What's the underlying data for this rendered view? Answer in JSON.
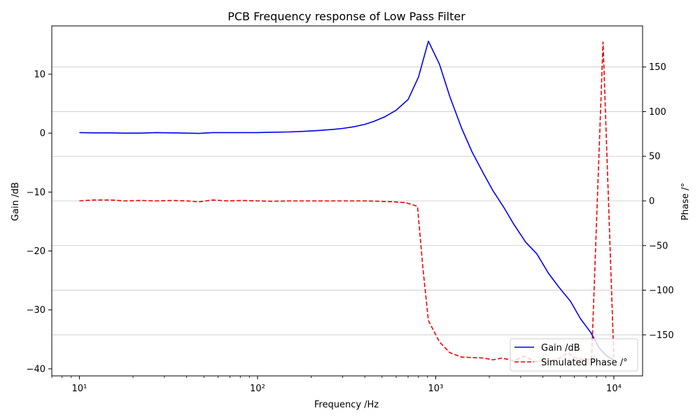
{
  "chart_data": {
    "type": "line",
    "title": "PCB Frequency response of Low Pass Filter",
    "xlabel": "Frequency /Hz",
    "ylabel": "Gain /dB",
    "y2label": "Phase /°",
    "xscale": "log",
    "xlim": [
      7,
      14500
    ],
    "ylim": [
      -41.2,
      18.2
    ],
    "y2lim": [
      -196,
      196
    ],
    "x_ticks": [
      {
        "value": 10,
        "label": "10¹"
      },
      {
        "value": 100,
        "label": "10²"
      },
      {
        "value": 1000,
        "label": "10³"
      },
      {
        "value": 10000,
        "label": "10⁴"
      }
    ],
    "y_ticks": [
      10,
      0,
      -10,
      -20,
      -30,
      -40
    ],
    "y_tick_labels": [
      "10",
      "0",
      "−10",
      "−20",
      "−30",
      "−40"
    ],
    "y2_ticks": [
      150,
      100,
      50,
      0,
      -50,
      -100,
      -150
    ],
    "y2_tick_labels": [
      "150",
      "100",
      "50",
      "0",
      "−50",
      "−100",
      "−150"
    ],
    "grid": "horizontal on secondary axis",
    "legend": "bottom-right",
    "series": [
      {
        "name": "Gain /dB",
        "axis": "left",
        "color": "#0000ee",
        "style": "solid",
        "x": [
          10,
          12,
          15,
          18,
          22,
          27,
          33,
          40,
          47,
          56,
          68,
          82,
          100,
          120,
          150,
          180,
          220,
          270,
          300,
          350,
          400,
          450,
          520,
          600,
          700,
          800,
          910,
          1050,
          1200,
          1400,
          1600,
          1850,
          2100,
          2400,
          2750,
          3200,
          3700,
          4300,
          4900,
          5700,
          6500,
          7400,
          8300,
          9100,
          10000
        ],
        "values": [
          0.1,
          0.05,
          0.05,
          0.0,
          0.0,
          0.1,
          0.05,
          0.0,
          -0.05,
          0.1,
          0.1,
          0.1,
          0.1,
          0.15,
          0.2,
          0.3,
          0.45,
          0.65,
          0.8,
          1.1,
          1.5,
          2.0,
          2.8,
          3.9,
          5.7,
          9.5,
          15.6,
          11.7,
          6.2,
          0.8,
          -3.2,
          -6.8,
          -9.8,
          -12.5,
          -15.5,
          -18.5,
          -20.5,
          -23.8,
          -26.1,
          -28.5,
          -31.5,
          -33.8,
          -36.5,
          -37.8,
          -38.5
        ]
      },
      {
        "name": "Simulated Phase /°",
        "axis": "right",
        "color": "#ee0000",
        "style": "dashed",
        "x": [
          10,
          12,
          15,
          18,
          22,
          27,
          33,
          40,
          47,
          56,
          68,
          82,
          100,
          120,
          150,
          180,
          220,
          270,
          330,
          400,
          480,
          580,
          680,
          790,
          850,
          910,
          1050,
          1200,
          1400,
          1650,
          1850,
          2100,
          2350,
          2750,
          3150,
          3600,
          4100,
          4800,
          5500,
          6100,
          6800,
          7500,
          8700,
          10000
        ],
        "values": [
          0,
          1,
          1,
          0,
          0.5,
          0,
          0.5,
          0,
          -1,
          1,
          0,
          0.5,
          0,
          -0.5,
          0,
          0,
          0,
          0,
          0,
          0,
          -0.5,
          -1,
          -2,
          -6,
          -78,
          -134,
          -158,
          -170,
          -175,
          -175.5,
          -176,
          -178,
          -176,
          -179,
          -174,
          -180,
          -179,
          -178,
          -170,
          -176,
          -178,
          -178,
          178,
          -175
        ]
      }
    ]
  }
}
